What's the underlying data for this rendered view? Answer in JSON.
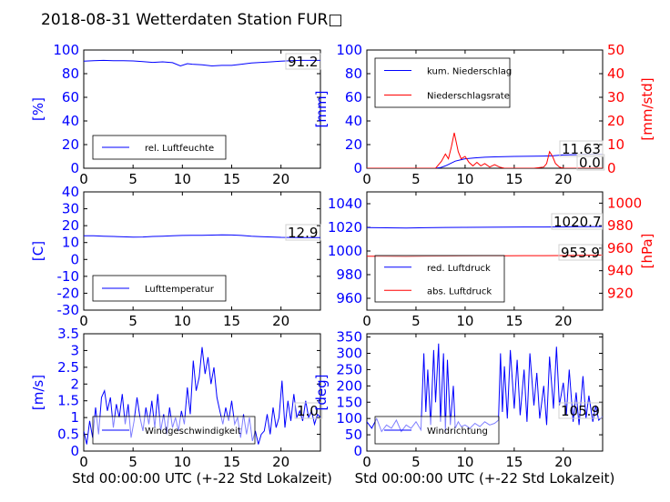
{
  "page": {
    "title": "2018-08-31 Wetterdaten Station FUR□"
  },
  "colors": {
    "primary": "#0000ff",
    "secondary": "#ff0000",
    "frame": "#000000",
    "annotation_box": "#d0d0d0"
  },
  "chart_data": [
    {
      "id": "humidity",
      "type": "line",
      "xlim": [
        0,
        24
      ],
      "ylim": [
        0,
        100
      ],
      "xticks": [
        0,
        5,
        10,
        15,
        20
      ],
      "yticks": [
        0,
        20,
        40,
        60,
        80,
        100
      ],
      "ylabel": "[%]",
      "legend": "lower-left",
      "annotation": "91.2",
      "series": [
        {
          "name": "rel. Luftfeuchte",
          "color": "#0000ff",
          "x": [
            0,
            1,
            2,
            3,
            4,
            5,
            6,
            7,
            8,
            9,
            9.8,
            10.5,
            11,
            12,
            13,
            14,
            15,
            16,
            17,
            18,
            19,
            20,
            21,
            22,
            23,
            24
          ],
          "y": [
            90.5,
            91,
            91.2,
            91,
            91,
            90.8,
            90.2,
            89.5,
            90,
            89.3,
            86.5,
            88.5,
            88,
            87.5,
            86.5,
            87,
            87,
            88,
            89,
            89.5,
            90,
            90.5,
            91,
            91.2,
            91.2,
            91.2
          ]
        }
      ]
    },
    {
      "id": "precipitation",
      "type": "line",
      "xlim": [
        0,
        24
      ],
      "ylim": [
        0,
        100
      ],
      "y2lim": [
        0,
        50
      ],
      "xticks": [
        0,
        5,
        10,
        15,
        20
      ],
      "yticks": [
        0,
        20,
        40,
        60,
        80,
        100
      ],
      "y2ticks": [
        0,
        10,
        20,
        30,
        40,
        50
      ],
      "ylabel": "[mm]",
      "y2label": "[mm/std]",
      "legend": "top-left",
      "annotations": [
        "11.63",
        "0.0"
      ],
      "series": [
        {
          "name": "kum. Niederschlag",
          "color": "#0000ff",
          "axis": "left",
          "x": [
            0,
            7,
            7.5,
            8,
            8.5,
            9,
            9.5,
            10,
            11,
            12,
            13,
            14,
            15,
            16,
            17,
            18,
            19,
            20,
            21,
            22,
            23,
            24
          ],
          "y": [
            0,
            0,
            0.5,
            2,
            4,
            6,
            7,
            8,
            8.8,
            9.3,
            9.6,
            9.8,
            10,
            10.1,
            10.2,
            10.3,
            10.5,
            11.2,
            11.5,
            11.6,
            11.63,
            11.63
          ]
        },
        {
          "name": "Niederschlagsrate",
          "color": "#ff0000",
          "axis": "right",
          "x": [
            0,
            7,
            7.3,
            7.6,
            8,
            8.3,
            8.6,
            8.9,
            9.1,
            9.3,
            9.6,
            10,
            10.4,
            10.8,
            11.2,
            11.6,
            12,
            12.5,
            13,
            13.5,
            14,
            15,
            16,
            17,
            18,
            18.3,
            18.6,
            18.9,
            19.2,
            19.6,
            20,
            21,
            24
          ],
          "y": [
            0,
            0,
            1.5,
            3,
            6,
            4,
            9,
            15,
            11,
            7,
            4,
            5,
            2.5,
            1,
            2.5,
            1,
            2,
            0.5,
            1.5,
            0.5,
            0,
            0,
            0,
            0,
            0.5,
            2,
            7,
            5,
            2,
            0.5,
            0,
            0,
            0
          ]
        }
      ]
    },
    {
      "id": "temperature",
      "type": "line",
      "xlim": [
        0,
        24
      ],
      "ylim": [
        -30,
        40
      ],
      "xticks": [
        0,
        5,
        10,
        15,
        20
      ],
      "yticks": [
        -30,
        -20,
        -10,
        0,
        10,
        20,
        30,
        40
      ],
      "ylabel": "[C]",
      "legend": "lower-left",
      "annotation": "12.9",
      "series": [
        {
          "name": "Lufttemperatur",
          "color": "#0000ff",
          "x": [
            0,
            1,
            2,
            3,
            4,
            5,
            6,
            7,
            8,
            9,
            10,
            11,
            12,
            13,
            14,
            15,
            16,
            17,
            18,
            19,
            20,
            21,
            22,
            23,
            24
          ],
          "y": [
            14,
            14,
            13.8,
            13.6,
            13.4,
            13.2,
            13.3,
            13.6,
            13.8,
            14,
            14.2,
            14.3,
            14.3,
            14.4,
            14.6,
            14.5,
            14.2,
            13.8,
            13.5,
            13.3,
            13.1,
            13,
            12.9,
            12.9,
            12.9
          ]
        }
      ]
    },
    {
      "id": "pressure",
      "type": "line",
      "xlim": [
        0,
        24
      ],
      "ylim": [
        950,
        1050
      ],
      "y2lim": [
        905,
        1010
      ],
      "xticks": [
        0,
        5,
        10,
        15,
        20
      ],
      "yticks": [
        960,
        980,
        1000,
        1020,
        1040
      ],
      "y2ticks": [
        920,
        940,
        960,
        980,
        1000
      ],
      "ylabel": "",
      "y2label": "[hPa]",
      "legend": "lower-left",
      "annotations": [
        "1020.7",
        "953.9"
      ],
      "series": [
        {
          "name": "red. Luftdruck",
          "color": "#0000ff",
          "axis": "left",
          "x": [
            0,
            2,
            4,
            6,
            8,
            10,
            12,
            14,
            16,
            18,
            20,
            22,
            24
          ],
          "y": [
            1019.8,
            1019.6,
            1019.5,
            1019.7,
            1019.9,
            1020,
            1020.1,
            1020.2,
            1020.3,
            1020.3,
            1020.4,
            1020.6,
            1020.7
          ]
        },
        {
          "name": "abs. Luftdruck",
          "color": "#ff0000",
          "axis": "right",
          "x": [
            0,
            2,
            4,
            6,
            8,
            10,
            12,
            14,
            16,
            18,
            20,
            22,
            24
          ],
          "y": [
            952.9,
            952.7,
            952.6,
            952.8,
            953,
            953.1,
            953.2,
            953.3,
            953.4,
            953.4,
            953.5,
            953.7,
            953.9
          ]
        }
      ]
    },
    {
      "id": "windspeed",
      "type": "line",
      "xlim": [
        0,
        24
      ],
      "ylim": [
        0,
        3.5
      ],
      "xticks": [
        0,
        5,
        10,
        15,
        20
      ],
      "yticks": [
        0,
        0.5,
        1,
        1.5,
        2,
        2.5,
        3,
        3.5
      ],
      "ylabel": "[m/s]",
      "xlabel": "Std 00:00:00 UTC (+-22 Std Lokalzeit)",
      "legend": "bottom-left",
      "annotation": "1.0",
      "series": [
        {
          "name": "Windgeschwindigkeit",
          "color": "#0000ff",
          "x": [
            0,
            0.3,
            0.6,
            0.9,
            1.2,
            1.5,
            1.8,
            2.1,
            2.4,
            2.7,
            3,
            3.3,
            3.6,
            3.9,
            4.2,
            4.5,
            4.8,
            5.1,
            5.4,
            5.7,
            6,
            6.3,
            6.6,
            6.9,
            7.2,
            7.5,
            7.8,
            8.1,
            8.4,
            8.7,
            9,
            9.3,
            9.6,
            9.9,
            10.2,
            10.5,
            10.8,
            11.1,
            11.4,
            11.7,
            12,
            12.3,
            12.6,
            12.9,
            13.2,
            13.5,
            13.8,
            14.1,
            14.4,
            14.7,
            15,
            15.3,
            15.6,
            15.9,
            16.2,
            16.5,
            16.8,
            17.1,
            17.4,
            17.7,
            18,
            18.3,
            18.6,
            18.9,
            19.2,
            19.5,
            19.8,
            20.1,
            20.4,
            20.7,
            21,
            21.3,
            21.6,
            21.9,
            22.2,
            22.5,
            22.8,
            23.1,
            23.4,
            23.7,
            24
          ],
          "y": [
            0.6,
            0.2,
            0.9,
            0.4,
            1.3,
            0.5,
            1.6,
            1.8,
            1.2,
            1.6,
            0.7,
            1.4,
            1.0,
            1.7,
            0.8,
            1.4,
            0.4,
            0.9,
            1.6,
            1.0,
            0.6,
            1.3,
            0.8,
            1.5,
            0.7,
            1.7,
            0.6,
            1.1,
            0.5,
            1.3,
            0.7,
            1.0,
            0.6,
            1.2,
            0.8,
            1.9,
            1.1,
            2.7,
            1.8,
            2.2,
            3.1,
            2.3,
            2.8,
            2.0,
            2.5,
            1.6,
            1.2,
            0.8,
            1.3,
            0.9,
            1.5,
            0.8,
            1.0,
            0.4,
            1.1,
            0.5,
            1.0,
            0.3,
            0.6,
            0.2,
            0.5,
            0.6,
            1.1,
            0.5,
            1.3,
            0.7,
            1.0,
            2.1,
            0.7,
            1.5,
            0.9,
            1.7,
            1.0,
            1.2,
            0.9,
            1.5,
            1.0,
            1.2,
            0.8,
            1.1,
            1.0
          ]
        }
      ]
    },
    {
      "id": "winddirection",
      "type": "line",
      "xlim": [
        0,
        24
      ],
      "ylim": [
        0,
        360
      ],
      "xticks": [
        0,
        5,
        10,
        15,
        20
      ],
      "yticks": [
        0,
        50,
        100,
        150,
        200,
        250,
        300,
        350
      ],
      "ylabel": "[deg]",
      "xlabel": "Std 00:00:00 UTC (+-22 Std Lokalzeit)",
      "legend": "bottom-left",
      "annotation": "105.9",
      "series": [
        {
          "name": "Windrichtung",
          "color": "#0000ff",
          "x": [
            0,
            0.5,
            1,
            1.5,
            2,
            2.5,
            3,
            3.5,
            4,
            4.5,
            5,
            5.5,
            5.8,
            6,
            6.2,
            6.5,
            6.8,
            7,
            7.3,
            7.5,
            7.8,
            8,
            8.2,
            8.5,
            8.8,
            9,
            9.3,
            9.6,
            10,
            10.5,
            11,
            11.5,
            12,
            12.5,
            13,
            13.4,
            13.6,
            13.8,
            14,
            14.3,
            14.6,
            15,
            15.3,
            15.6,
            16,
            16.3,
            16.6,
            17,
            17.3,
            17.6,
            18,
            18.3,
            18.6,
            19,
            19.3,
            19.6,
            20,
            20.3,
            20.6,
            21,
            21.3,
            21.6,
            22,
            22.3,
            22.6,
            23,
            23.3,
            23.6,
            24
          ],
          "y": [
            90,
            70,
            100,
            60,
            80,
            70,
            95,
            60,
            80,
            70,
            90,
            65,
            300,
            120,
            250,
            80,
            310,
            150,
            330,
            90,
            300,
            60,
            280,
            80,
            200,
            70,
            90,
            75,
            80,
            70,
            85,
            75,
            90,
            80,
            85,
            95,
            300,
            120,
            260,
            100,
            310,
            130,
            280,
            110,
            250,
            90,
            300,
            140,
            240,
            100,
            200,
            80,
            290,
            130,
            320,
            140,
            210,
            110,
            250,
            90,
            180,
            80,
            230,
            100,
            170,
            90,
            140,
            95,
            106
          ]
        }
      ]
    }
  ]
}
